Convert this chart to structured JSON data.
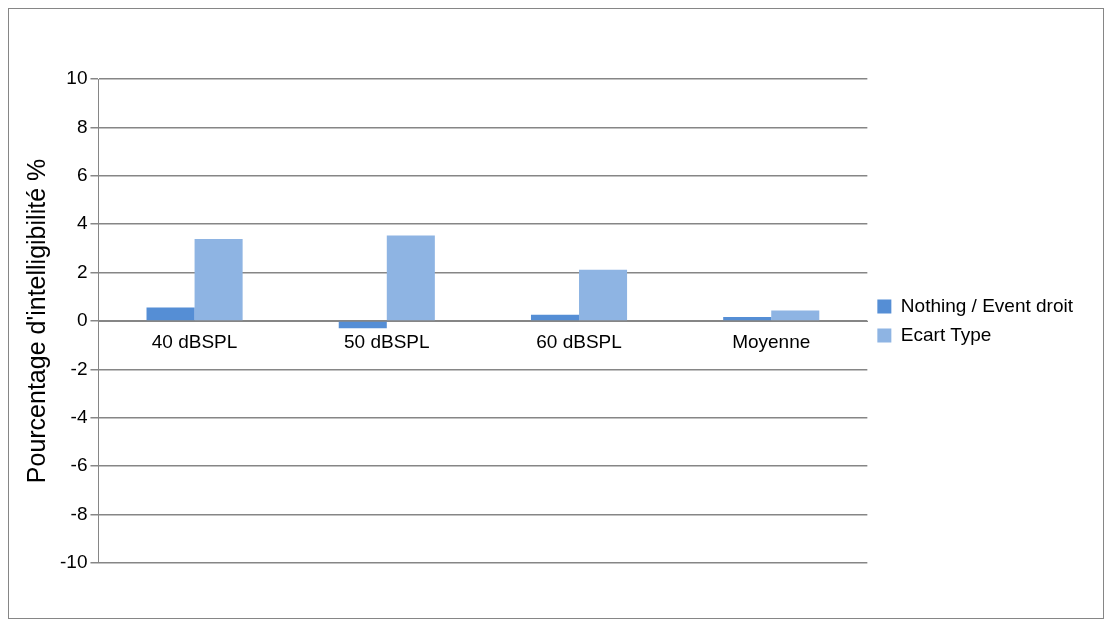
{
  "chart_data": {
    "type": "bar",
    "ylabel": "Pourcentage d'intelligibilité %",
    "categories": [
      "40 dBSPL",
      "50 dBSPL",
      "60 dBSPL",
      "Moyenne"
    ],
    "series": [
      {
        "name": "Nothing / Event droit",
        "color": "#558ed5",
        "values": [
          0.56,
          -0.3,
          0.26,
          0.17
        ]
      },
      {
        "name": "Ecart Type",
        "color": "#8eb4e3",
        "values": [
          3.39,
          3.53,
          2.12,
          0.43
        ]
      }
    ],
    "ylim": [
      -10,
      10
    ],
    "yticks": [
      -10,
      -8,
      -6,
      -4,
      -2,
      0,
      2,
      4,
      6,
      8,
      10
    ],
    "grid": "y",
    "legend": "right"
  }
}
